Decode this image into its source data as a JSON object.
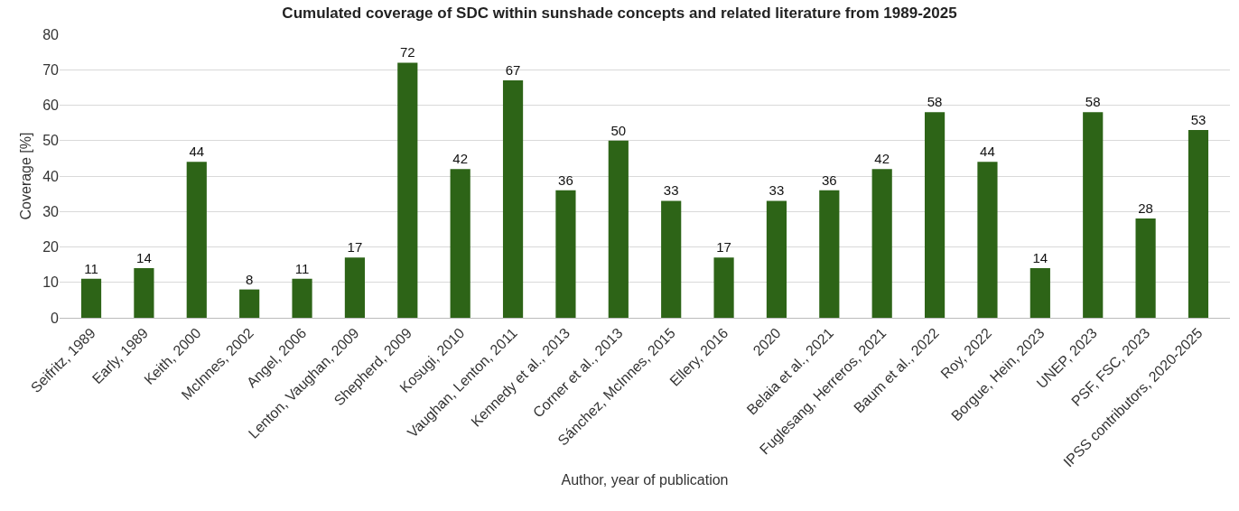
{
  "chart_data": {
    "type": "bar",
    "title": "Cumulated coverage of SDC within sunshade concepts and related literature from 1989-2025",
    "xlabel": "Author, year of publication",
    "ylabel": "Coverage [%]",
    "categories": [
      "Seifritz, 1989",
      "Early, 1989",
      "Keith, 2000",
      "McInnes, 2002",
      "Angel, 2006",
      "Lenton, Vaughan, 2009",
      "Shepherd, 2009",
      "Kosugi, 2010",
      "Vaughan, Lenton, 2011",
      "Kennedy et al., 2013",
      "Corner et al., 2013",
      "Sánchez, McInnes, 2015",
      "Ellery, 2016",
      "2020",
      "Belaia et al., 2021",
      "Fuglesang, Herreros, 2021",
      "Baum et al., 2022",
      "Roy, 2022",
      "Borgue, Hein, 2023",
      "UNEP, 2023",
      "PSF, FSC, 2023",
      "IPSS contributors, 2020-2025"
    ],
    "values": [
      11,
      14,
      44,
      8,
      11,
      17,
      72,
      42,
      67,
      36,
      50,
      33,
      17,
      33,
      36,
      42,
      58,
      44,
      14,
      58,
      28,
      53
    ],
    "color": "#2d6417",
    "ylim": [
      0,
      80
    ],
    "yticks": [
      0,
      10,
      20,
      30,
      40,
      50,
      60,
      70,
      80
    ],
    "grid": "y",
    "data_labels": true,
    "legend": false
  }
}
